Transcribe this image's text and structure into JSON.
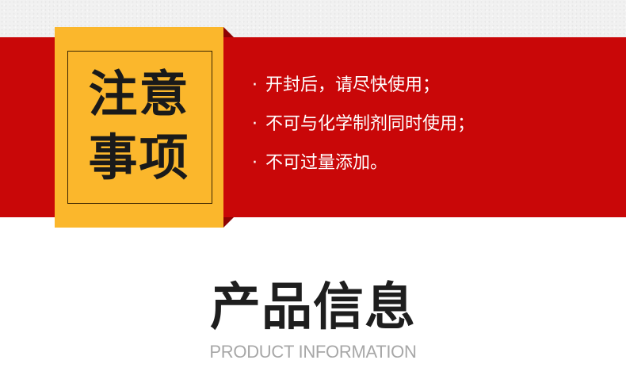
{
  "notice": {
    "title_line1": "注意",
    "title_line2": "事项",
    "bullet": "·",
    "items": [
      "开封后，请尽快使用；",
      "不可与化学制剂同时使用；",
      "不可过量添加。"
    ]
  },
  "product_info": {
    "title": "产品信息",
    "subtitle": "PRODUCT INFORMATION"
  },
  "colors": {
    "band_red": "#c90708",
    "box_yellow": "#fbb72c",
    "fold_dark_red": "#8f0304",
    "title_dark": "#1e1e1e",
    "subtitle_gray": "#a7a7a7"
  }
}
